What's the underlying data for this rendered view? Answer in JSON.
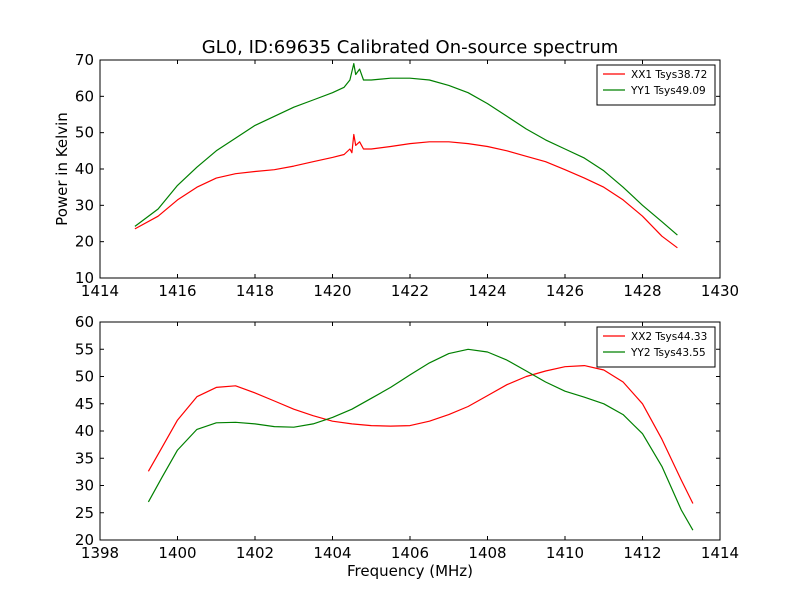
{
  "figure": {
    "title": "GL0, ID:69635 Calibrated On-source spectrum"
  },
  "chart_data": [
    {
      "type": "line",
      "ylabel": "Power in Kelvin",
      "xlabel": "",
      "xlim": [
        1414,
        1430
      ],
      "ylim": [
        10,
        70
      ],
      "xticks": [
        1414,
        1416,
        1418,
        1420,
        1422,
        1424,
        1426,
        1428,
        1430
      ],
      "yticks": [
        10,
        20,
        30,
        40,
        50,
        60,
        70
      ],
      "grid": false,
      "legend": "top-right",
      "series": [
        {
          "name": "XX1 Tsys38.72",
          "color": "#ff0000",
          "points": [
            [
              1414.9,
              23.5
            ],
            [
              1415.5,
              27
            ],
            [
              1416,
              31.5
            ],
            [
              1416.5,
              35
            ],
            [
              1417,
              37.5
            ],
            [
              1417.5,
              38.7
            ],
            [
              1418,
              39.3
            ],
            [
              1418.5,
              39.8
            ],
            [
              1419,
              40.8
            ],
            [
              1419.5,
              42
            ],
            [
              1420,
              43.2
            ],
            [
              1420.3,
              44
            ],
            [
              1420.45,
              45.5
            ],
            [
              1420.5,
              44.5
            ],
            [
              1420.55,
              49.5
            ],
            [
              1420.6,
              46.5
            ],
            [
              1420.7,
              47.5
            ],
            [
              1420.8,
              45.5
            ],
            [
              1421,
              45.5
            ],
            [
              1421.5,
              46.2
            ],
            [
              1422,
              47
            ],
            [
              1422.5,
              47.5
            ],
            [
              1423,
              47.5
            ],
            [
              1423.5,
              47
            ],
            [
              1424,
              46.2
            ],
            [
              1424.5,
              45
            ],
            [
              1425,
              43.5
            ],
            [
              1425.5,
              42
            ],
            [
              1426,
              39.8
            ],
            [
              1426.5,
              37.5
            ],
            [
              1427,
              35
            ],
            [
              1427.5,
              31.5
            ],
            [
              1428,
              27
            ],
            [
              1428.5,
              21.5
            ],
            [
              1428.9,
              18.3
            ]
          ]
        },
        {
          "name": "YY1 Tsys49.09",
          "color": "#008000",
          "points": [
            [
              1414.9,
              24.2
            ],
            [
              1415.5,
              29
            ],
            [
              1416,
              35.5
            ],
            [
              1416.5,
              40.5
            ],
            [
              1417,
              45
            ],
            [
              1417.5,
              48.5
            ],
            [
              1418,
              52
            ],
            [
              1418.5,
              54.5
            ],
            [
              1419,
              57
            ],
            [
              1419.5,
              59
            ],
            [
              1420,
              61
            ],
            [
              1420.3,
              62.5
            ],
            [
              1420.45,
              64.5
            ],
            [
              1420.55,
              69
            ],
            [
              1420.6,
              66
            ],
            [
              1420.7,
              67.5
            ],
            [
              1420.8,
              64.5
            ],
            [
              1421,
              64.5
            ],
            [
              1421.5,
              65
            ],
            [
              1422,
              65
            ],
            [
              1422.5,
              64.5
            ],
            [
              1423,
              63
            ],
            [
              1423.5,
              61
            ],
            [
              1424,
              58
            ],
            [
              1424.5,
              54.5
            ],
            [
              1425,
              51
            ],
            [
              1425.5,
              48
            ],
            [
              1426,
              45.5
            ],
            [
              1426.5,
              43
            ],
            [
              1427,
              39.5
            ],
            [
              1427.5,
              35
            ],
            [
              1428,
              30
            ],
            [
              1428.5,
              25.5
            ],
            [
              1428.9,
              21.8
            ]
          ]
        }
      ]
    },
    {
      "type": "line",
      "ylabel": "",
      "xlabel": "Frequency (MHz)",
      "xlim": [
        1398,
        1414
      ],
      "ylim": [
        20,
        60
      ],
      "xticks": [
        1398,
        1400,
        1402,
        1404,
        1406,
        1408,
        1410,
        1412,
        1414
      ],
      "yticks": [
        20,
        25,
        30,
        35,
        40,
        45,
        50,
        55,
        60
      ],
      "grid": false,
      "legend": "top-right",
      "series": [
        {
          "name": "XX2 Tsys44.33",
          "color": "#ff0000",
          "points": [
            [
              1399.25,
              32.6
            ],
            [
              1399.6,
              37
            ],
            [
              1400,
              42
            ],
            [
              1400.5,
              46.3
            ],
            [
              1401,
              48
            ],
            [
              1401.5,
              48.3
            ],
            [
              1402,
              47
            ],
            [
              1402.5,
              45.5
            ],
            [
              1403,
              44
            ],
            [
              1403.5,
              42.8
            ],
            [
              1404,
              41.8
            ],
            [
              1404.5,
              41.3
            ],
            [
              1405,
              41
            ],
            [
              1405.5,
              40.9
            ],
            [
              1406,
              41
            ],
            [
              1406.5,
              41.8
            ],
            [
              1407,
              43
            ],
            [
              1407.5,
              44.5
            ],
            [
              1408,
              46.5
            ],
            [
              1408.5,
              48.5
            ],
            [
              1409,
              50
            ],
            [
              1409.5,
              51
            ],
            [
              1410,
              51.8
            ],
            [
              1410.5,
              52
            ],
            [
              1411,
              51.2
            ],
            [
              1411.5,
              49
            ],
            [
              1412,
              45
            ],
            [
              1412.5,
              38.5
            ],
            [
              1413,
              31
            ],
            [
              1413.3,
              26.7
            ]
          ]
        },
        {
          "name": "YY2 Tsys43.55",
          "color": "#008000",
          "points": [
            [
              1399.25,
              27
            ],
            [
              1399.6,
              31.5
            ],
            [
              1400,
              36.5
            ],
            [
              1400.5,
              40.3
            ],
            [
              1401,
              41.5
            ],
            [
              1401.5,
              41.6
            ],
            [
              1402,
              41.3
            ],
            [
              1402.5,
              40.8
            ],
            [
              1403,
              40.7
            ],
            [
              1403.5,
              41.3
            ],
            [
              1404,
              42.5
            ],
            [
              1404.5,
              44
            ],
            [
              1405,
              46
            ],
            [
              1405.5,
              48
            ],
            [
              1406,
              50.3
            ],
            [
              1406.5,
              52.5
            ],
            [
              1407,
              54.2
            ],
            [
              1407.5,
              55
            ],
            [
              1408,
              54.5
            ],
            [
              1408.5,
              53
            ],
            [
              1409,
              51
            ],
            [
              1409.5,
              49
            ],
            [
              1410,
              47.3
            ],
            [
              1410.5,
              46.2
            ],
            [
              1411,
              45
            ],
            [
              1411.5,
              43
            ],
            [
              1412,
              39.5
            ],
            [
              1412.5,
              33.5
            ],
            [
              1413,
              25.5
            ],
            [
              1413.3,
              21.8
            ]
          ]
        }
      ]
    }
  ]
}
